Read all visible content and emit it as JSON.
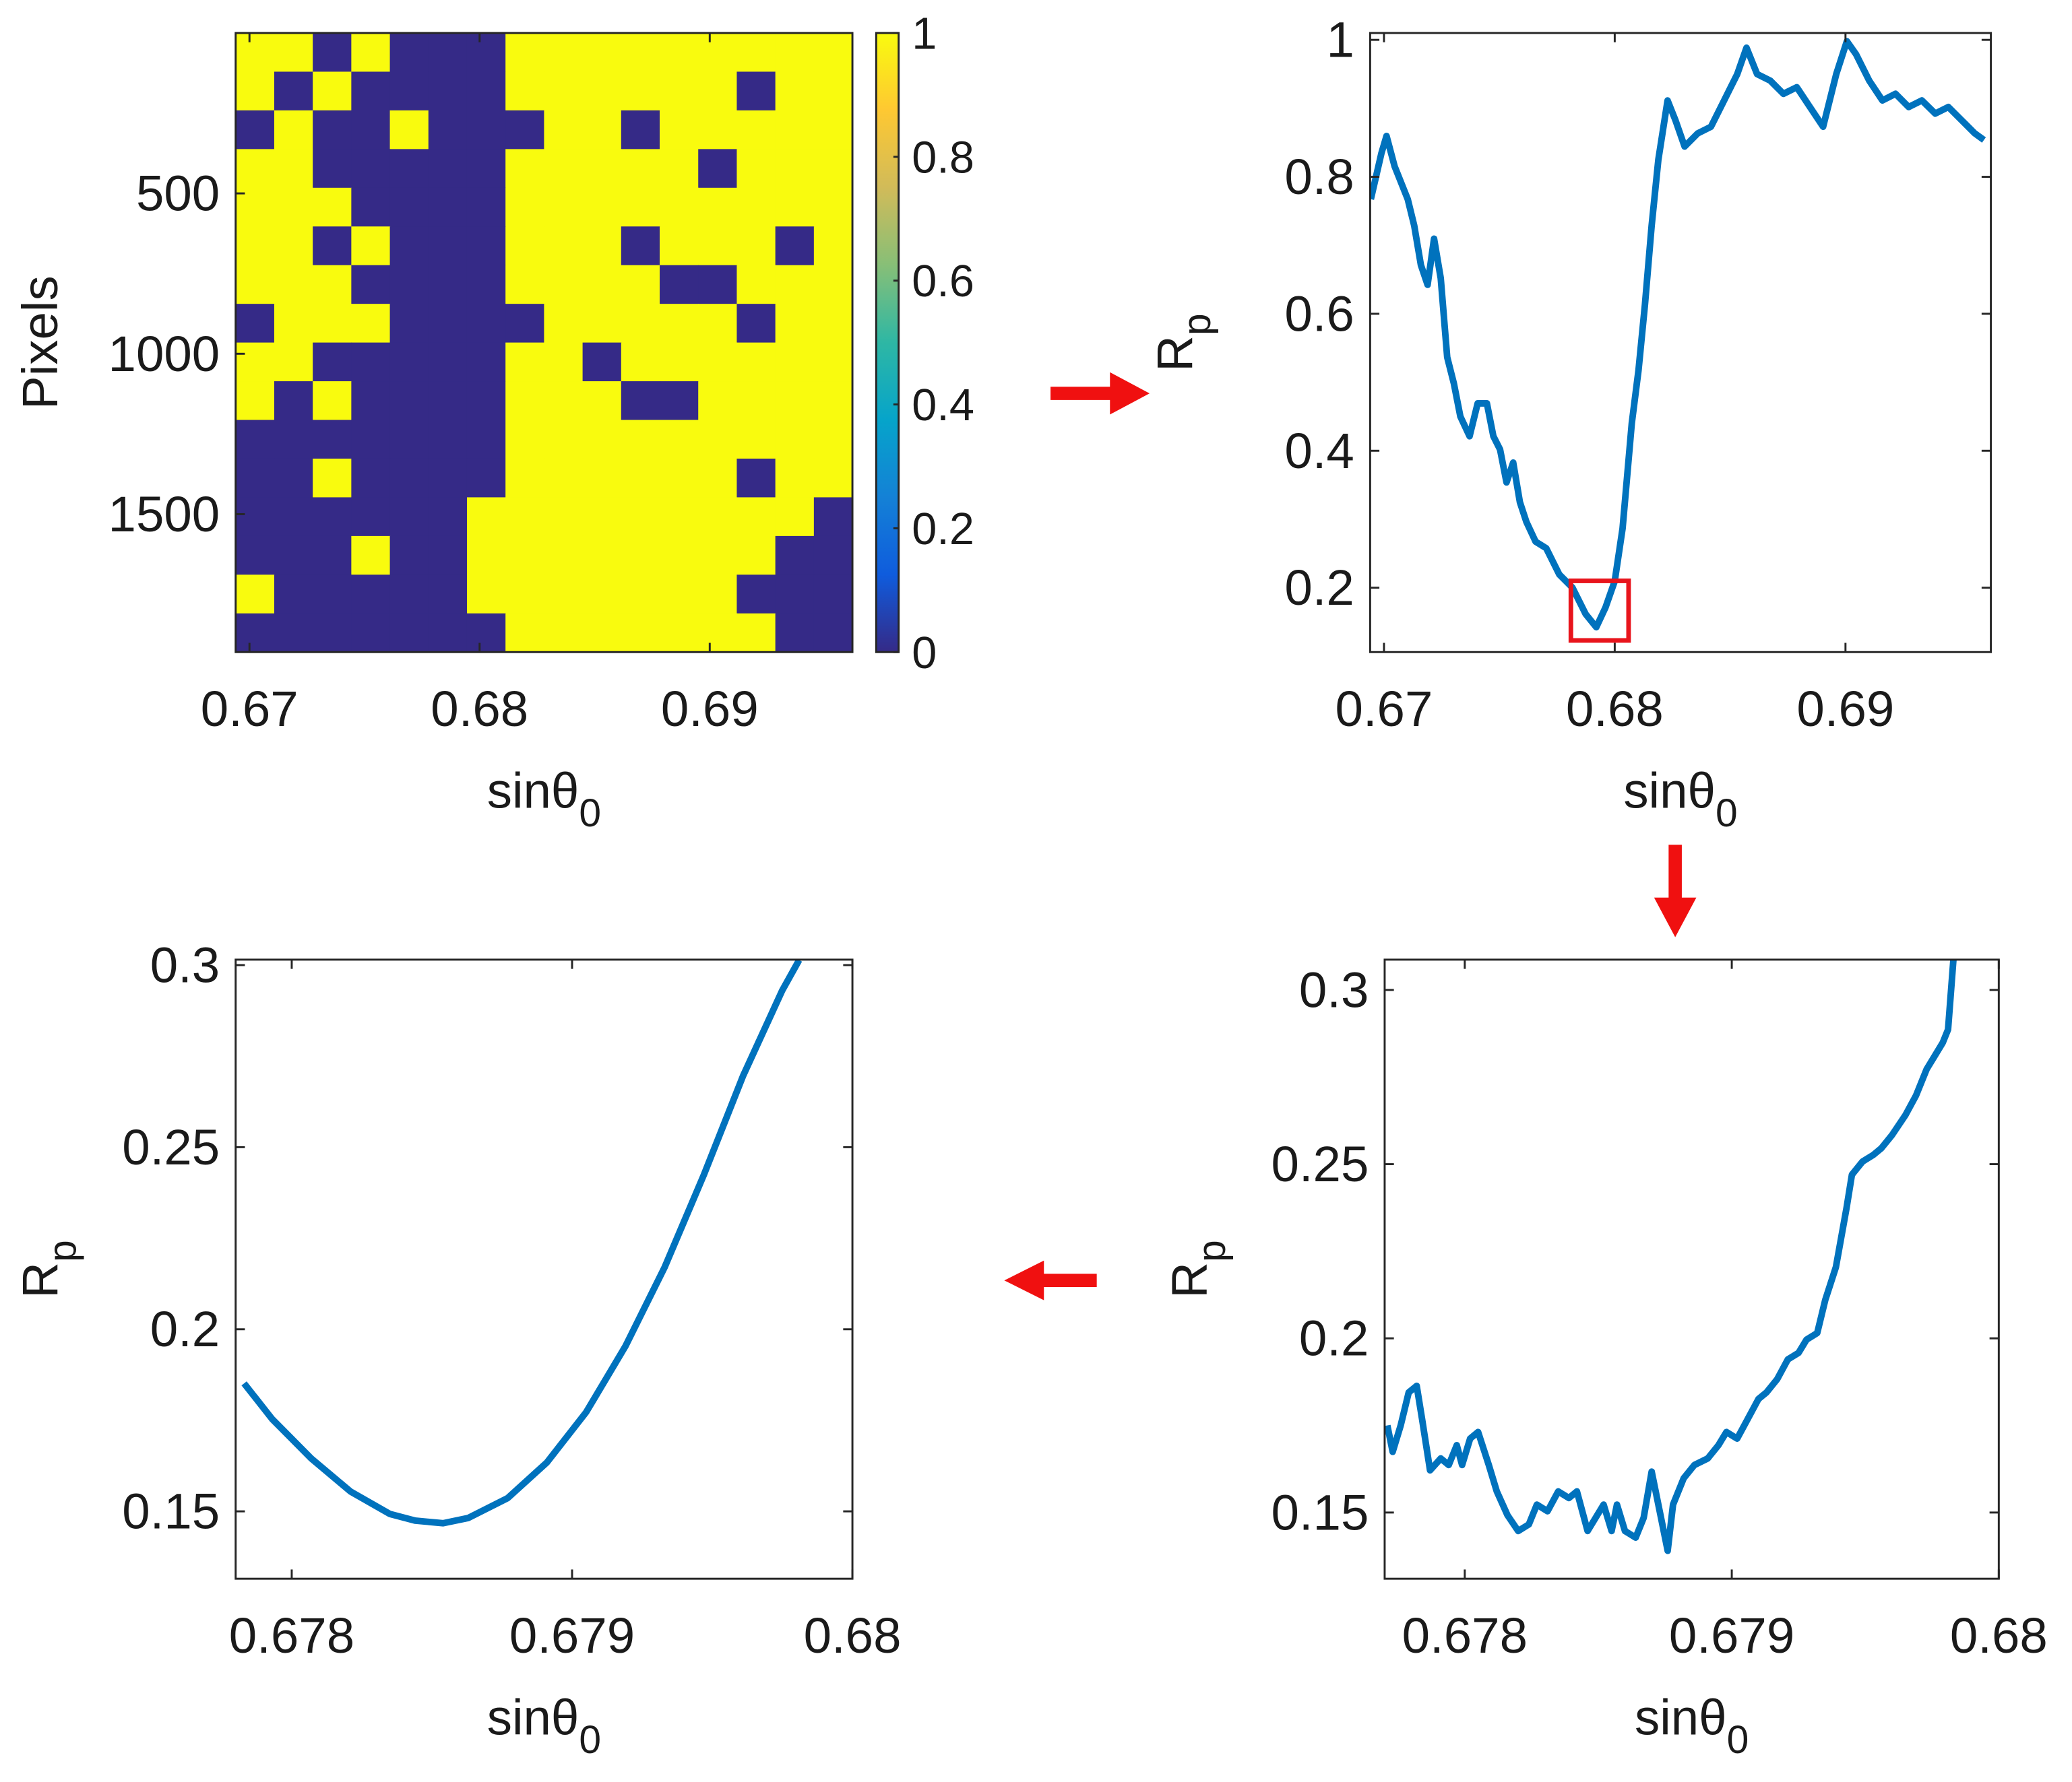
{
  "chart_data": [
    {
      "type": "heatmap",
      "xlabel": "sinθ",
      "xlabel_sub": "0",
      "ylabel": "Pixels",
      "xlim": [
        0.6694,
        0.6962
      ],
      "xticks": [
        0.67,
        0.68,
        0.69
      ],
      "ylim": [
        0,
        1930
      ],
      "yticks": [
        500,
        1000,
        1500
      ],
      "y_direction": "reverse",
      "colormap": [
        "#352a87",
        "#0f5cdd",
        "#1481d6",
        "#06a4ca",
        "#2eb7a4",
        "#87bf77",
        "#d1bb59",
        "#fec832",
        "#f9fb0e"
      ],
      "colorbar": {
        "lim": [
          0,
          1
        ],
        "ticks": [
          0,
          0.2,
          0.4,
          0.6,
          0.8,
          1
        ]
      },
      "z": [
        [
          1,
          1,
          0,
          1,
          0,
          0,
          0,
          1,
          1,
          1,
          1,
          1,
          1,
          1,
          1,
          1
        ],
        [
          1,
          0,
          1,
          0,
          0,
          0,
          0,
          1,
          1,
          1,
          1,
          1,
          1,
          0,
          1,
          1
        ],
        [
          0,
          1,
          0,
          0,
          1,
          0,
          0,
          0,
          1,
          1,
          0,
          1,
          1,
          1,
          1,
          1
        ],
        [
          1,
          1,
          0,
          0,
          0,
          0,
          0,
          1,
          1,
          1,
          1,
          1,
          0,
          1,
          1,
          1
        ],
        [
          1,
          1,
          1,
          0,
          0,
          0,
          0,
          1,
          1,
          1,
          1,
          1,
          1,
          1,
          1,
          1
        ],
        [
          1,
          1,
          0,
          1,
          0,
          0,
          0,
          1,
          1,
          1,
          0,
          1,
          1,
          1,
          0,
          1
        ],
        [
          1,
          1,
          1,
          0,
          0,
          0,
          0,
          1,
          1,
          1,
          1,
          0,
          0,
          1,
          1,
          1
        ],
        [
          0,
          1,
          1,
          1,
          0,
          0,
          0,
          0,
          1,
          1,
          1,
          1,
          1,
          0,
          1,
          1
        ],
        [
          1,
          1,
          0,
          0,
          0,
          0,
          0,
          1,
          1,
          0,
          1,
          1,
          1,
          1,
          1,
          1
        ],
        [
          1,
          0,
          1,
          0,
          0,
          0,
          0,
          1,
          1,
          1,
          0,
          0,
          1,
          1,
          1,
          1
        ],
        [
          0,
          0,
          0,
          0,
          0,
          0,
          0,
          1,
          1,
          1,
          1,
          1,
          1,
          1,
          1,
          1
        ],
        [
          0,
          0,
          1,
          0,
          0,
          0,
          0,
          1,
          1,
          1,
          1,
          1,
          1,
          0,
          1,
          1
        ],
        [
          0,
          0,
          0,
          0,
          0,
          0,
          1,
          1,
          1,
          1,
          1,
          1,
          1,
          1,
          1,
          0
        ],
        [
          0,
          0,
          0,
          1,
          0,
          0,
          1,
          1,
          1,
          1,
          1,
          1,
          1,
          1,
          0,
          0
        ],
        [
          1,
          0,
          0,
          0,
          0,
          0,
          1,
          1,
          1,
          1,
          1,
          1,
          1,
          0,
          0,
          0
        ],
        [
          0,
          0,
          0,
          0,
          0,
          0,
          0,
          1,
          1,
          1,
          1,
          1,
          1,
          1,
          0,
          0
        ]
      ]
    },
    {
      "type": "line",
      "xlabel": "sinθ",
      "xlabel_sub": "0",
      "ylabel": "R",
      "ylabel_sub": "p",
      "color": "#0072bd",
      "xlim": [
        0.6694,
        0.6963
      ],
      "xticks": [
        0.67,
        0.68,
        0.69
      ],
      "ylim": [
        0.106,
        1.01
      ],
      "yticks": [
        0.2,
        0.4,
        0.6,
        0.8,
        1
      ],
      "x": [
        0.66943,
        0.66989,
        0.67011,
        0.67046,
        0.67103,
        0.67131,
        0.6716,
        0.67189,
        0.67217,
        0.67246,
        0.67274,
        0.67303,
        0.67331,
        0.67371,
        0.67406,
        0.67446,
        0.67474,
        0.67503,
        0.67531,
        0.6756,
        0.67589,
        0.67617,
        0.67657,
        0.67703,
        0.6776,
        0.67817,
        0.67874,
        0.6792,
        0.6796,
        0.68,
        0.68034,
        0.68074,
        0.68103,
        0.68131,
        0.6816,
        0.68189,
        0.68229,
        0.68263,
        0.68303,
        0.6836,
        0.68417,
        0.68474,
        0.68531,
        0.68571,
        0.68617,
        0.68674,
        0.68731,
        0.68789,
        0.68846,
        0.68903,
        0.6896,
        0.69006,
        0.69046,
        0.69103,
        0.6916,
        0.69217,
        0.69274,
        0.69331,
        0.69389,
        0.69446,
        0.69503,
        0.6956,
        0.696
      ],
      "values": [
        0.7673,
        0.8346,
        0.8596,
        0.8154,
        0.7673,
        0.7288,
        0.6712,
        0.6423,
        0.7096,
        0.6519,
        0.5365,
        0.4981,
        0.45,
        0.4212,
        0.4692,
        0.4692,
        0.4212,
        0.4019,
        0.3538,
        0.3827,
        0.325,
        0.2962,
        0.2673,
        0.2577,
        0.2192,
        0.2,
        0.1615,
        0.1423,
        0.1712,
        0.2096,
        0.2865,
        0.4404,
        0.5173,
        0.6135,
        0.7288,
        0.825,
        0.9115,
        0.8827,
        0.8442,
        0.8635,
        0.8731,
        0.9115,
        0.95,
        0.9885,
        0.95,
        0.9404,
        0.9212,
        0.9308,
        0.9019,
        0.8731,
        0.95,
        0.998,
        0.9788,
        0.9404,
        0.9115,
        0.9212,
        0.9019,
        0.9115,
        0.8923,
        0.9019,
        0.8827,
        0.8635,
        0.8538
      ],
      "highlight": {
        "x": [
          0.6781,
          0.6806
        ],
        "y": [
          0.123,
          0.21
        ],
        "color": "#e8141c"
      }
    },
    {
      "type": "line",
      "xlabel": "sinθ",
      "xlabel_sub": "0",
      "ylabel": "R",
      "ylabel_sub": "p",
      "color": "#0072bd",
      "xlim": [
        0.6778,
        0.68
      ],
      "xticks": [
        0.678,
        0.679,
        0.68
      ],
      "ylim": [
        0.1315,
        0.3015
      ],
      "yticks": [
        0.15,
        0.2,
        0.25,
        0.3
      ],
      "x": [
        0.67783,
        0.67793,
        0.67807,
        0.67821,
        0.67835,
        0.67844,
        0.67854,
        0.67863,
        0.67877,
        0.67891,
        0.67905,
        0.67919,
        0.67933,
        0.67947,
        0.67961,
        0.67975,
        0.67981
      ],
      "values": [
        0.18514,
        0.17536,
        0.16449,
        0.15543,
        0.14928,
        0.14746,
        0.14674,
        0.14819,
        0.15362,
        0.16341,
        0.1772,
        0.1953,
        0.217,
        0.2424,
        0.2696,
        0.2931,
        0.3014
      ]
    },
    {
      "type": "line",
      "xlabel": "sinθ",
      "xlabel_sub": "0",
      "ylabel": "R",
      "ylabel_sub": "p",
      "color": "#0072bd",
      "xlim": [
        0.6777,
        0.68
      ],
      "xticks": [
        0.678,
        0.679,
        0.68
      ],
      "ylim": [
        0.131,
        0.3087
      ],
      "yticks": [
        0.15,
        0.2,
        0.25,
        0.3
      ],
      "x": [
        0.67771,
        0.67773,
        0.67776,
        0.67779,
        0.67782,
        0.67784,
        0.67787,
        0.67791,
        0.67794,
        0.67797,
        0.67799,
        0.67802,
        0.67805,
        0.67809,
        0.67812,
        0.67816,
        0.6782,
        0.67824,
        0.67827,
        0.67831,
        0.67835,
        0.67839,
        0.67842,
        0.67846,
        0.67849,
        0.67852,
        0.67855,
        0.67857,
        0.6786,
        0.67864,
        0.67867,
        0.6787,
        0.67873,
        0.67876,
        0.67878,
        0.67882,
        0.67886,
        0.67891,
        0.67895,
        0.67898,
        0.67902,
        0.67906,
        0.6791,
        0.67913,
        0.67917,
        0.67921,
        0.67925,
        0.67928,
        0.67932,
        0.67935,
        0.67939,
        0.67943,
        0.67945,
        0.67949,
        0.67953,
        0.67956,
        0.6796,
        0.67965,
        0.67969,
        0.67973,
        0.67976,
        0.67979,
        0.67981,
        0.67983
      ],
      "values": [
        0.175,
        0.16742,
        0.175,
        0.18447,
        0.18636,
        0.17689,
        0.16212,
        0.16553,
        0.16364,
        0.16932,
        0.16364,
        0.17121,
        0.17311,
        0.16364,
        0.15606,
        0.14924,
        0.1447,
        0.14659,
        0.15227,
        0.15038,
        0.15606,
        0.15417,
        0.15606,
        0.1447,
        0.14848,
        0.15227,
        0.1447,
        0.15227,
        0.1447,
        0.1428,
        0.14848,
        0.16174,
        0.15038,
        0.13902,
        0.15227,
        0.15985,
        0.16364,
        0.16553,
        0.16932,
        0.17311,
        0.17121,
        0.17689,
        0.18258,
        0.18447,
        0.18826,
        0.19394,
        0.19583,
        0.19962,
        0.20152,
        0.21098,
        0.22045,
        0.2375,
        0.24697,
        0.25076,
        0.25265,
        0.25455,
        0.25833,
        0.26402,
        0.2697,
        0.27727,
        0.28106,
        0.28485,
        0.28864,
        0.3086
      ]
    }
  ]
}
